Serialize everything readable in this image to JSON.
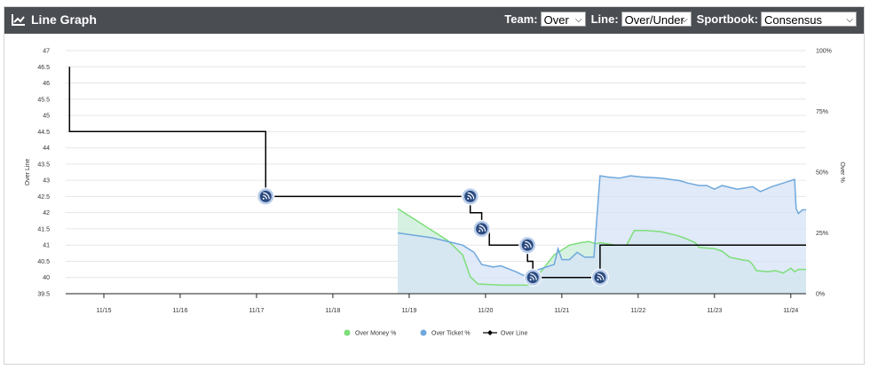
{
  "header": {
    "title": "Line Graph",
    "team_label": "Team:",
    "team_value": "Over",
    "line_label": "Line:",
    "line_value": "Over/Under",
    "sportsbook_label": "Sportbook:",
    "sportsbook_value": "Consensus"
  },
  "colors": {
    "header_bg": "#4a4d52",
    "money": "#7ede7a",
    "money_fill": "#cfeedd",
    "ticket": "#6fa8dc",
    "ticket_fill": "#d5e3f5",
    "line": "#000000",
    "marker": "#2b4a7f"
  },
  "chart_data": {
    "type": "line",
    "xlabel": "",
    "ylabel_left": "Over Line",
    "ylabel_right": "Over %",
    "x_ticks": [
      "11/15",
      "11/16",
      "11/17",
      "11/18",
      "11/19",
      "11/20",
      "11/21",
      "11/22",
      "11/23",
      "11/24"
    ],
    "xlim": [
      14.5,
      24.2
    ],
    "y_left_ticks": [
      "39.5",
      "40",
      "40.5",
      "41",
      "41.5",
      "42",
      "42.5",
      "43",
      "43.5",
      "44",
      "44.5",
      "45",
      "45.5",
      "46",
      "46.5",
      "47"
    ],
    "ylim_left": [
      39.5,
      47
    ],
    "y_right_ticks": [
      "0%",
      "25%",
      "50%",
      "75%",
      "100%"
    ],
    "ylim_right": [
      0,
      100
    ],
    "grid": true,
    "legend_position": "bottom",
    "series": [
      {
        "name": "Over Money %",
        "axis": "right",
        "points": [
          [
            18.85,
            35
          ],
          [
            19.5,
            22
          ],
          [
            19.7,
            16
          ],
          [
            19.8,
            7
          ],
          [
            19.9,
            4
          ],
          [
            20.2,
            3.5
          ],
          [
            20.5,
            3.5
          ],
          [
            20.6,
            3.5
          ],
          [
            20.65,
            6
          ],
          [
            20.75,
            10
          ],
          [
            20.85,
            14
          ],
          [
            20.9,
            16
          ],
          [
            21.0,
            18
          ],
          [
            21.1,
            20
          ],
          [
            21.25,
            21
          ],
          [
            21.35,
            21.5
          ],
          [
            21.45,
            20.5
          ],
          [
            21.5,
            21
          ],
          [
            21.7,
            20
          ],
          [
            21.85,
            20
          ],
          [
            21.95,
            26
          ],
          [
            22.1,
            26
          ],
          [
            22.3,
            25.5
          ],
          [
            22.5,
            24
          ],
          [
            22.6,
            23
          ],
          [
            22.75,
            21
          ],
          [
            22.8,
            19
          ],
          [
            23.0,
            18.5
          ],
          [
            23.1,
            17.5
          ],
          [
            23.2,
            15
          ],
          [
            23.35,
            14
          ],
          [
            23.45,
            13.5
          ],
          [
            23.5,
            12
          ],
          [
            23.55,
            9.5
          ],
          [
            23.7,
            9
          ],
          [
            23.8,
            9.5
          ],
          [
            23.9,
            8.5
          ],
          [
            24.0,
            10.5
          ],
          [
            24.05,
            9
          ],
          [
            24.1,
            10
          ],
          [
            24.2,
            10
          ]
        ]
      },
      {
        "name": "Over Ticket %",
        "axis": "right",
        "points": [
          [
            18.85,
            25
          ],
          [
            19.3,
            23
          ],
          [
            19.7,
            20
          ],
          [
            19.85,
            17
          ],
          [
            19.95,
            12
          ],
          [
            20.1,
            11
          ],
          [
            20.2,
            11.5
          ],
          [
            20.4,
            9
          ],
          [
            20.5,
            7.5
          ],
          [
            20.6,
            8.5
          ],
          [
            20.7,
            10
          ],
          [
            20.9,
            12
          ],
          [
            20.95,
            18.5
          ],
          [
            21.0,
            14
          ],
          [
            21.1,
            14
          ],
          [
            21.2,
            17
          ],
          [
            21.3,
            15
          ],
          [
            21.42,
            15
          ],
          [
            21.5,
            48.5
          ],
          [
            21.6,
            48
          ],
          [
            21.75,
            47.5
          ],
          [
            21.9,
            48.5
          ],
          [
            22.05,
            48
          ],
          [
            22.3,
            47.5
          ],
          [
            22.55,
            46.5
          ],
          [
            22.65,
            45.5
          ],
          [
            22.8,
            44.5
          ],
          [
            22.9,
            44.5
          ],
          [
            23.0,
            43
          ],
          [
            23.1,
            44.5
          ],
          [
            23.3,
            43
          ],
          [
            23.5,
            44
          ],
          [
            23.6,
            42
          ],
          [
            23.75,
            44
          ],
          [
            23.9,
            45.5
          ],
          [
            24.0,
            46.5
          ],
          [
            24.05,
            47
          ],
          [
            24.07,
            35
          ],
          [
            24.1,
            33
          ],
          [
            24.15,
            34.5
          ],
          [
            24.2,
            34.5
          ]
        ]
      },
      {
        "name": "Over Line",
        "axis": "left",
        "type": "step",
        "points": [
          [
            14.55,
            46.5
          ],
          [
            14.55,
            44.5
          ],
          [
            17.12,
            44.5
          ],
          [
            17.12,
            42.5
          ],
          [
            19.8,
            42.5
          ],
          [
            19.8,
            42.0
          ],
          [
            19.95,
            42.0
          ],
          [
            19.95,
            41.5
          ],
          [
            20.05,
            41.5
          ],
          [
            20.05,
            41.0
          ],
          [
            20.55,
            41.0
          ],
          [
            20.55,
            40.5
          ],
          [
            20.62,
            40.5
          ],
          [
            20.62,
            40.0
          ],
          [
            21.5,
            40.0
          ],
          [
            21.5,
            41.0
          ],
          [
            24.2,
            41.0
          ]
        ],
        "markers": [
          [
            17.12,
            42.5
          ],
          [
            19.8,
            42.5
          ],
          [
            19.95,
            41.5
          ],
          [
            20.55,
            41.0
          ],
          [
            20.62,
            40.0
          ],
          [
            21.5,
            40.0
          ]
        ]
      }
    ]
  }
}
